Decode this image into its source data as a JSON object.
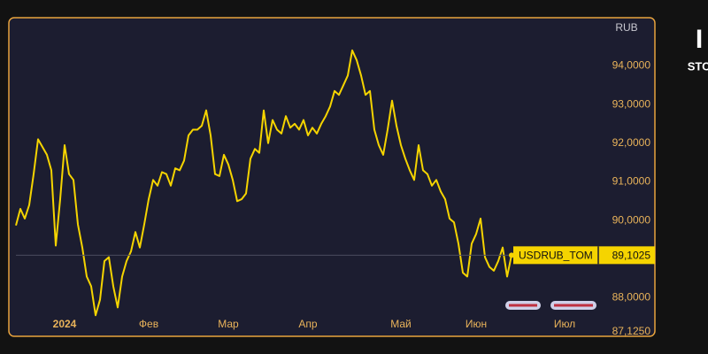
{
  "chart_data": {
    "type": "line",
    "axis_unit": "RUB",
    "side_text": [
      "I",
      "STO"
    ],
    "categories": [
      null,
      null,
      null,
      null,
      null,
      null,
      null,
      null,
      null,
      null,
      null,
      "2024",
      null,
      null,
      null,
      null,
      null,
      null,
      null,
      null,
      null,
      null,
      null,
      null,
      null,
      null,
      null,
      null,
      null,
      null,
      "Фев",
      null,
      null,
      null,
      null,
      null,
      null,
      null,
      null,
      null,
      null,
      null,
      null,
      null,
      null,
      null,
      null,
      null,
      "Мар",
      null,
      null,
      null,
      null,
      null,
      null,
      null,
      null,
      null,
      null,
      null,
      null,
      null,
      null,
      null,
      null,
      null,
      "Апр",
      null,
      null,
      null,
      null,
      null,
      null,
      null,
      null,
      null,
      null,
      null,
      null,
      null,
      null,
      null,
      null,
      null,
      null,
      null,
      null,
      "Май",
      null,
      null,
      null,
      null,
      null,
      null,
      null,
      null,
      null,
      null,
      null,
      null,
      null,
      null,
      null,
      null,
      "Июн",
      null,
      null,
      null,
      null,
      null,
      null,
      null,
      null,
      null,
      null,
      null,
      null,
      null,
      null,
      null,
      null,
      null,
      null,
      null,
      "Июл",
      null,
      null,
      null,
      null,
      null,
      null,
      null,
      null,
      null,
      null,
      null,
      null,
      null,
      null,
      null,
      null,
      null,
      null,
      null
    ],
    "series": [
      {
        "name": "USDRUB_TOM",
        "color": "#f5d400",
        "values": [
          89.87,
          90.3,
          90.05,
          90.4,
          91.2,
          92.1,
          91.9,
          91.7,
          91.3,
          89.35,
          90.55,
          91.95,
          91.2,
          91.05,
          89.9,
          89.3,
          88.55,
          88.3,
          87.55,
          87.95,
          88.95,
          89.05,
          88.3,
          87.75,
          88.55,
          88.95,
          89.2,
          89.7,
          89.3,
          89.9,
          90.55,
          91.05,
          90.9,
          91.25,
          91.2,
          90.9,
          91.35,
          91.3,
          91.55,
          92.2,
          92.35,
          92.35,
          92.45,
          92.85,
          92.2,
          91.2,
          91.15,
          91.7,
          91.45,
          91.05,
          90.5,
          90.55,
          90.7,
          91.6,
          91.85,
          91.75,
          92.85,
          92.0,
          92.6,
          92.35,
          92.25,
          92.7,
          92.4,
          92.5,
          92.35,
          92.6,
          92.2,
          92.4,
          92.25,
          92.5,
          92.7,
          92.95,
          93.35,
          93.25,
          93.5,
          93.75,
          94.4,
          94.15,
          93.75,
          93.25,
          93.35,
          92.35,
          91.95,
          91.7,
          92.35,
          93.1,
          92.45,
          91.95,
          91.6,
          91.3,
          91.05,
          91.95,
          91.3,
          91.2,
          90.9,
          91.05,
          90.75,
          90.55,
          90.05,
          89.95,
          89.4,
          88.65,
          88.55,
          89.4,
          89.65,
          90.05,
          89.05,
          88.8,
          88.7,
          88.95,
          89.3,
          88.55,
          89.1025,
          null,
          null,
          null,
          null,
          null,
          null,
          null,
          null,
          null,
          null,
          null,
          null,
          null,
          null,
          null,
          null,
          null,
          null,
          null,
          null,
          null,
          null,
          null,
          null,
          null,
          null,
          null,
          null,
          null,
          null,
          null
        ],
        "value_labels": [
          null,
          null,
          null,
          null,
          null,
          null,
          null,
          null,
          null,
          null,
          null,
          null,
          null,
          null,
          null,
          null,
          null,
          null,
          null,
          null,
          null,
          null,
          null,
          null,
          null,
          null,
          null,
          null,
          null,
          null,
          null,
          null,
          null,
          null,
          null,
          null,
          null,
          null,
          null,
          null,
          null,
          null,
          null,
          null,
          null,
          null,
          null,
          null,
          null,
          null,
          null,
          null,
          null,
          null,
          null,
          null,
          null,
          null,
          null,
          null,
          null,
          null,
          null,
          null,
          null,
          null,
          null,
          null,
          null,
          null,
          null,
          null,
          null,
          null,
          null,
          null,
          null,
          null,
          null,
          null,
          null,
          null,
          null,
          null,
          null,
          null,
          null,
          null,
          null,
          null,
          null,
          null,
          null,
          null,
          null,
          null,
          null,
          null,
          null,
          null,
          null,
          null,
          null,
          null,
          null,
          null,
          null,
          null,
          null,
          null,
          null,
          null,
          "89,1025",
          null,
          null,
          null,
          null,
          null,
          null,
          null,
          null,
          null,
          null,
          null,
          null,
          null,
          null,
          null,
          null,
          null,
          null,
          null,
          null,
          null,
          null,
          null,
          null,
          null,
          null,
          null,
          null,
          null,
          null,
          null
        ]
      }
    ],
    "ylim": [
      87.05,
      95.2
    ],
    "yticks": [
      {
        "value": 87.125,
        "label": "87,1250"
      },
      {
        "value": 88,
        "label": "88,0000"
      },
      {
        "value": 90,
        "label": "90,0000"
      },
      {
        "value": 91,
        "label": "91,0000"
      },
      {
        "value": 92,
        "label": "92,0000"
      },
      {
        "value": 93,
        "label": "93,0000"
      },
      {
        "value": 94,
        "label": "94,0000"
      }
    ],
    "grid": false
  }
}
